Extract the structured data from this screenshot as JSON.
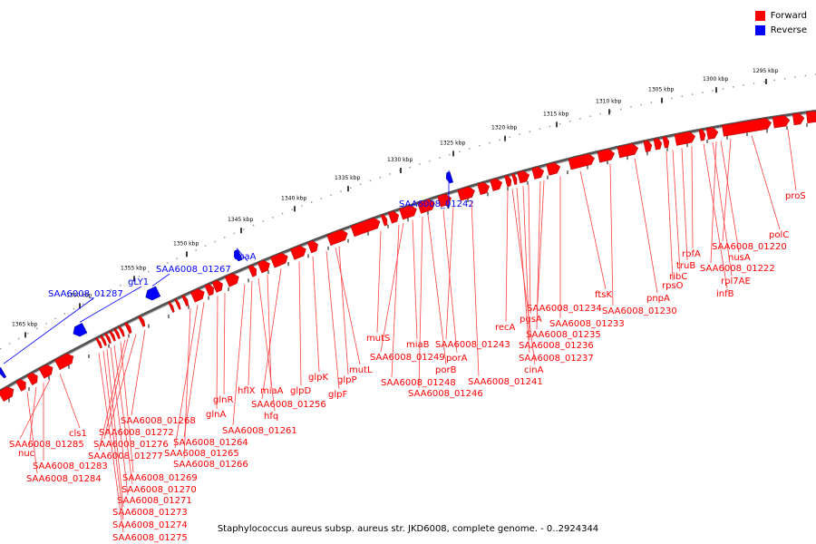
{
  "legend": [
    {
      "label": "Forward",
      "color": "#ff0000"
    },
    {
      "label": "Reverse",
      "color": "#0000ff"
    }
  ],
  "caption": "Staphylococcus aureus subsp. aureus str. JKD6008, complete genome. - 0..2924344",
  "colors": {
    "forward": "#ff0000",
    "forward_dark": "#b00000",
    "reverse": "#0000ff",
    "backbone": "#888888"
  },
  "scale_ticks": [
    "1295 kbp",
    "1300 kbp",
    "1305 kbp",
    "1310 kbp",
    "1315 kbp",
    "1320 kbp",
    "1325 kbp",
    "1330 kbp",
    "1335 kbp",
    "1340 kbp",
    "1345 kbp",
    "1350 kbp",
    "1355 kbp",
    "1360 kbp",
    "1365 kbp"
  ],
  "reverse_labels": [
    "SAA6008_01242",
    "bsaA",
    "SAA6008_01267",
    "gLY1",
    "SAA6008_01287"
  ],
  "forward_labels": [
    "proS",
    "polC",
    "SAA6008_01220",
    "nusA",
    "SAA6008_01222",
    "rpl7AE",
    "infB",
    "rbfA",
    "truB",
    "ribC",
    "rpsO",
    "pnpA",
    "SAA6008_01230",
    "ftsK",
    "SAA6008_01233",
    "SAA6008_01234",
    "SAA6008_01235",
    "pgsA",
    "SAA6008_01236",
    "recA",
    "SAA6008_01237",
    "cinA",
    "SAA6008_01241",
    "SAA6008_01243",
    "porA",
    "porB",
    "SAA6008_01246",
    "miaB",
    "SAA6008_01249",
    "SAA6008_01248",
    "mutS",
    "mutL",
    "glpP",
    "glpF",
    "glpK",
    "glpD",
    "SAA6008_01256",
    "miaA",
    "hfq",
    "hflX",
    "SAA6008_01261",
    "glnR",
    "glnA",
    "SAA6008_01264",
    "SAA6008_01265",
    "SAA6008_01266",
    "SAA6008_01268",
    "SAA6008_01272",
    "SAA6008_01276",
    "SAA6008_01277",
    "SAA6008_01269",
    "SAA6008_01270",
    "SAA6008_01271",
    "SAA6008_01273",
    "SAA6008_01274",
    "SAA6008_01275",
    "cls1",
    "SAA6008_01285",
    "nuc",
    "SAA6008_01283",
    "SAA6008_01284"
  ]
}
